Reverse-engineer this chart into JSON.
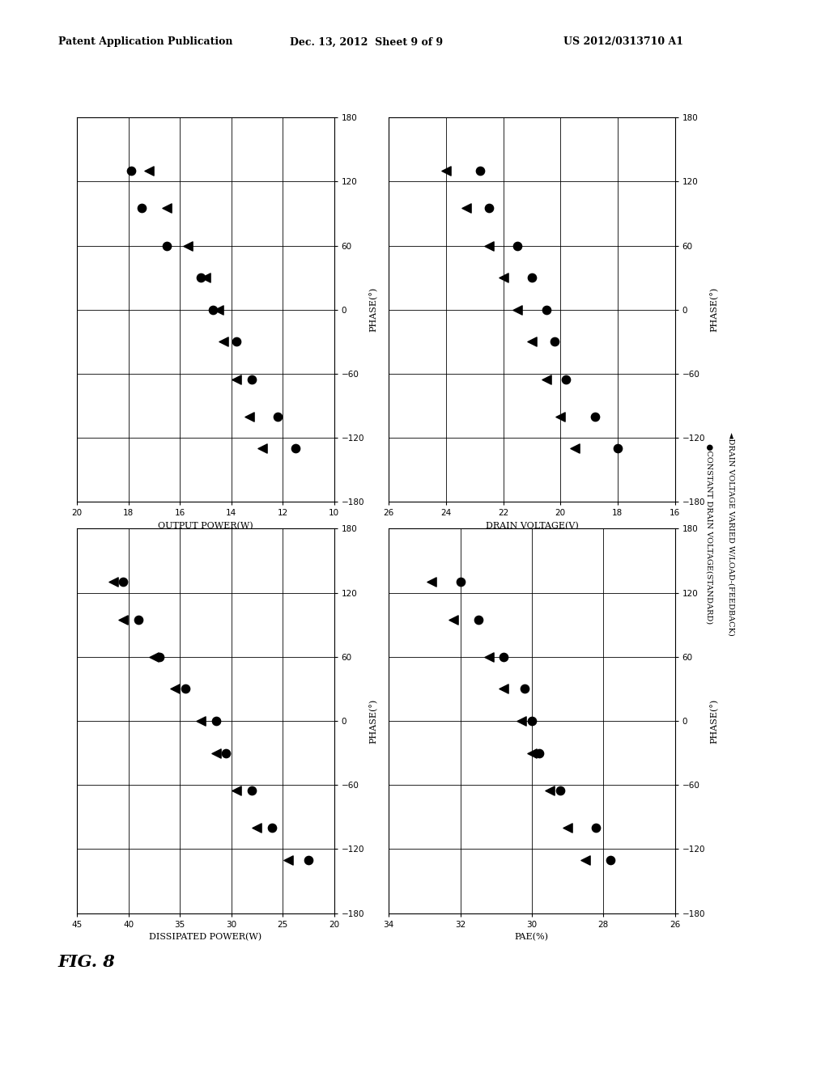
{
  "header_left": "Patent Application Publication",
  "header_center": "Dec. 13, 2012  Sheet 9 of 9",
  "header_right": "US 2012/0313710 A1",
  "figure_label": "FIG. 8",
  "legend_label1": "●CONSTANT DRAIN VOLTAGE(STANDARD)",
  "legend_label2": "◄DRAIN VOLTAGE VARIED W/LOAD-(FEEDBACK)",
  "plots": [
    {
      "title": "OUTPUT POWER(W)",
      "phase_label": "PHASE(°)",
      "xmin": 10,
      "xmax": 20,
      "yticks": [
        10,
        12,
        14,
        16,
        18,
        20
      ],
      "phase_min": -180,
      "phase_max": 180,
      "phase_ticks": [
        -180,
        -120,
        -60,
        0,
        60,
        120,
        180
      ],
      "circle_data": [
        [
          -130,
          11.5
        ],
        [
          -100,
          12.2
        ],
        [
          -65,
          13.2
        ],
        [
          -30,
          13.8
        ],
        [
          0,
          14.7
        ],
        [
          30,
          15.2
        ],
        [
          60,
          16.5
        ],
        [
          95,
          17.5
        ],
        [
          130,
          17.9
        ]
      ],
      "triangle_data": [
        [
          -130,
          12.8
        ],
        [
          -100,
          13.3
        ],
        [
          -65,
          13.8
        ],
        [
          -30,
          14.3
        ],
        [
          0,
          14.5
        ],
        [
          30,
          15.0
        ],
        [
          60,
          15.7
        ],
        [
          95,
          16.5
        ],
        [
          130,
          17.2
        ]
      ]
    },
    {
      "title": "DRAIN VOLTAGE(V)",
      "phase_label": "PHASE(°)",
      "xmin": 16,
      "xmax": 26,
      "yticks": [
        16,
        18,
        20,
        22,
        24,
        26
      ],
      "phase_min": -180,
      "phase_max": 180,
      "phase_ticks": [
        -180,
        -120,
        -60,
        0,
        60,
        120,
        180
      ],
      "circle_data": [
        [
          -130,
          18.0
        ],
        [
          -100,
          18.8
        ],
        [
          -65,
          19.8
        ],
        [
          -30,
          20.2
        ],
        [
          0,
          20.5
        ],
        [
          30,
          21.0
        ],
        [
          60,
          21.5
        ],
        [
          95,
          22.5
        ],
        [
          130,
          22.8
        ]
      ],
      "triangle_data": [
        [
          -130,
          19.5
        ],
        [
          -100,
          20.0
        ],
        [
          -65,
          20.5
        ],
        [
          -30,
          21.0
        ],
        [
          0,
          21.5
        ],
        [
          30,
          22.0
        ],
        [
          60,
          22.5
        ],
        [
          95,
          23.3
        ],
        [
          130,
          24.0
        ]
      ]
    },
    {
      "title": "DISSIPATED POWER(W)",
      "phase_label": "PHASE(°)",
      "xmin": 20,
      "xmax": 45,
      "yticks": [
        20,
        25,
        30,
        35,
        40,
        45
      ],
      "phase_min": -180,
      "phase_max": 180,
      "phase_ticks": [
        -180,
        -120,
        -60,
        0,
        60,
        120,
        180
      ],
      "circle_data": [
        [
          -130,
          22.5
        ],
        [
          -100,
          26.0
        ],
        [
          -65,
          28.0
        ],
        [
          -30,
          30.5
        ],
        [
          0,
          31.5
        ],
        [
          30,
          34.5
        ],
        [
          60,
          37.0
        ],
        [
          95,
          39.0
        ],
        [
          130,
          40.5
        ]
      ],
      "triangle_data": [
        [
          -130,
          24.5
        ],
        [
          -100,
          27.5
        ],
        [
          -65,
          29.5
        ],
        [
          -30,
          31.5
        ],
        [
          0,
          33.0
        ],
        [
          30,
          35.5
        ],
        [
          60,
          37.5
        ],
        [
          95,
          40.5
        ],
        [
          130,
          41.5
        ]
      ]
    },
    {
      "title": "PAE(%)",
      "phase_label": "PHASE(°)",
      "xmin": 26,
      "xmax": 34,
      "yticks": [
        26,
        28,
        30,
        32,
        34
      ],
      "phase_min": -180,
      "phase_max": 180,
      "phase_ticks": [
        -180,
        -120,
        -60,
        0,
        60,
        120,
        180
      ],
      "circle_data": [
        [
          -130,
          27.8
        ],
        [
          -100,
          28.2
        ],
        [
          -65,
          29.2
        ],
        [
          -30,
          29.8
        ],
        [
          0,
          30.0
        ],
        [
          30,
          30.2
        ],
        [
          60,
          30.8
        ],
        [
          95,
          31.5
        ],
        [
          130,
          32.0
        ]
      ],
      "triangle_data": [
        [
          -130,
          28.5
        ],
        [
          -100,
          29.0
        ],
        [
          -65,
          29.5
        ],
        [
          -30,
          30.0
        ],
        [
          0,
          30.3
        ],
        [
          30,
          30.8
        ],
        [
          60,
          31.2
        ],
        [
          95,
          32.2
        ],
        [
          130,
          32.8
        ]
      ]
    }
  ]
}
